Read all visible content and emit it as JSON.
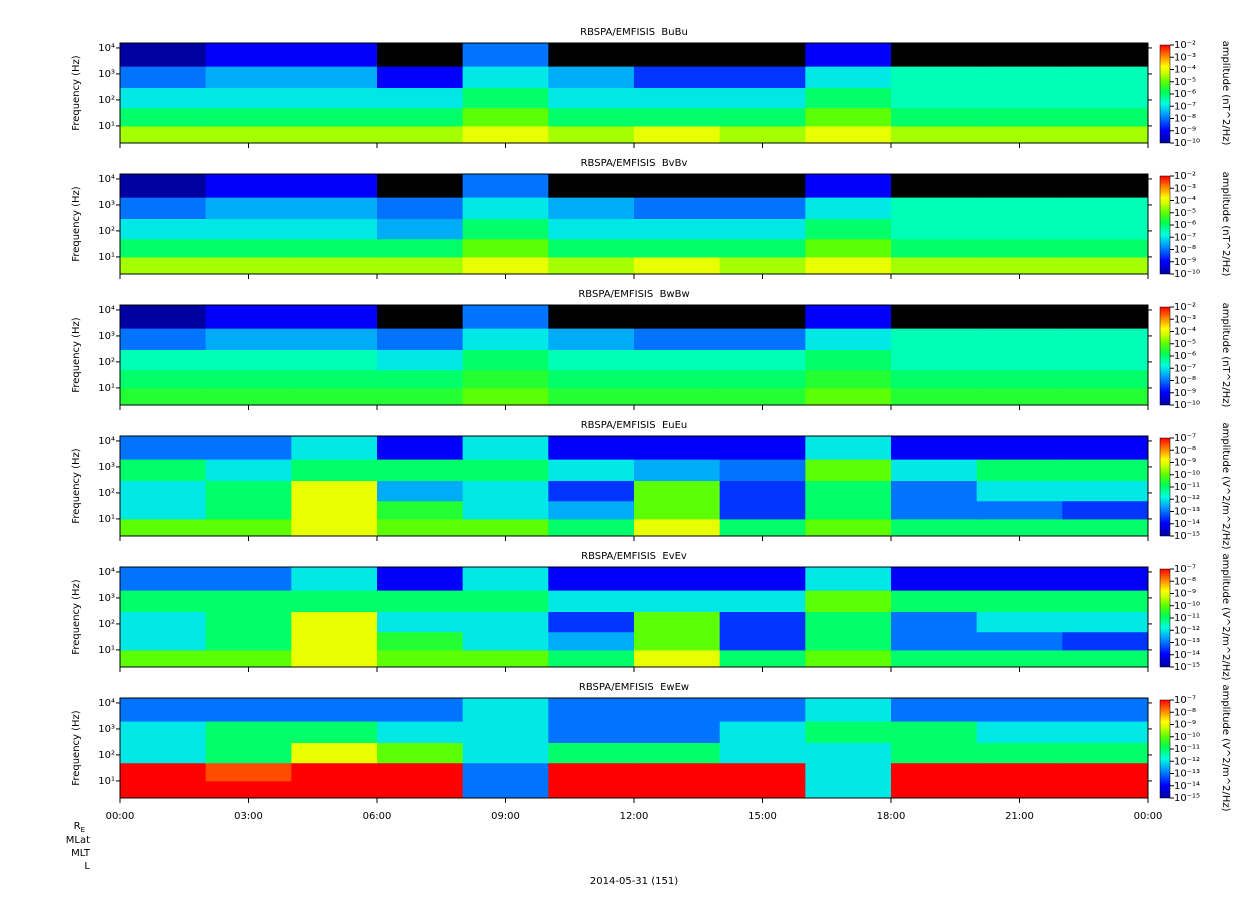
{
  "chart_data": [
    {
      "type": "heatmap",
      "title": "RBSPA/EMFISIS  BuBu",
      "ylabel": "Frequency (Hz)",
      "x_bins": [
        0,
        2,
        4,
        6,
        8,
        10,
        12,
        14,
        16,
        18,
        20,
        22,
        24
      ],
      "y_bins": [
        2.2,
        10,
        50,
        300,
        2000,
        15500
      ],
      "z": [
        [
          3e-05,
          3e-05,
          3e-05,
          3e-05,
          0.0001,
          3e-05,
          0.0001,
          3e-05,
          0.0001,
          3e-05,
          3e-05,
          3e-05
        ],
        [
          1e-06,
          1e-06,
          1e-06,
          1e-06,
          1e-05,
          1e-06,
          1e-06,
          1e-06,
          1e-05,
          1e-06,
          1e-06,
          1e-06
        ],
        [
          1e-07,
          1e-07,
          1e-07,
          1e-07,
          1e-06,
          1e-07,
          1e-07,
          1e-07,
          1e-06,
          3e-07,
          3e-07,
          3e-07
        ],
        [
          1e-08,
          3e-08,
          3e-08,
          1e-09,
          1e-07,
          3e-08,
          3e-09,
          3e-09,
          1e-07,
          3e-07,
          3e-07,
          3e-07
        ],
        [
          1e-10,
          1e-09,
          1e-09,
          1e-11,
          1e-08,
          1e-11,
          1e-11,
          1e-11,
          1e-09,
          1e-11,
          1e-11,
          1e-11
        ]
      ],
      "xlim": [
        0,
        24
      ],
      "xticks": [
        0,
        3,
        6,
        9,
        12,
        15,
        18,
        21,
        24
      ],
      "ylim": [
        2.2,
        15500
      ],
      "log_y": true,
      "yticks": [
        {
          "value": 10,
          "label": "10¹"
        },
        {
          "value": 100,
          "label": "10²"
        },
        {
          "value": 1000,
          "label": "10³"
        },
        {
          "value": 10000,
          "label": "10⁴"
        }
      ],
      "zlim": [
        1e-10,
        0.01
      ],
      "zticks": [
        {
          "value": 1e-10,
          "label": "10⁻¹⁰"
        },
        {
          "value": 1e-09,
          "label": "10⁻⁹"
        },
        {
          "value": 1e-08,
          "label": "10⁻⁸"
        },
        {
          "value": 1e-07,
          "label": "10⁻⁷"
        },
        {
          "value": 1e-06,
          "label": "10⁻⁶"
        },
        {
          "value": 1e-05,
          "label": "10⁻⁵"
        },
        {
          "value": 0.0001,
          "label": "10⁻⁴"
        },
        {
          "value": 0.001,
          "label": "10⁻³"
        },
        {
          "value": 0.01,
          "label": "10⁻²"
        }
      ],
      "zlabel": "amplitude (nT^2/Hz)"
    },
    {
      "type": "heatmap",
      "title": "RBSPA/EMFISIS  BvBv",
      "ylabel": "Frequency (Hz)",
      "x_bins": [
        0,
        2,
        4,
        6,
        8,
        10,
        12,
        14,
        16,
        18,
        20,
        22,
        24
      ],
      "y_bins": [
        2.2,
        10,
        50,
        300,
        2000,
        15500
      ],
      "z": [
        [
          3e-05,
          3e-05,
          3e-05,
          3e-05,
          0.0001,
          3e-05,
          0.0001,
          3e-05,
          0.0001,
          3e-05,
          3e-05,
          3e-05
        ],
        [
          1e-06,
          1e-06,
          1e-06,
          1e-06,
          1e-05,
          1e-06,
          1e-06,
          1e-06,
          1e-05,
          1e-06,
          1e-06,
          1e-06
        ],
        [
          1e-07,
          1e-07,
          1e-07,
          3e-08,
          1e-06,
          1e-07,
          1e-07,
          1e-07,
          1e-06,
          3e-07,
          3e-07,
          3e-07
        ],
        [
          1e-08,
          3e-08,
          3e-08,
          1e-08,
          1e-07,
          3e-08,
          1e-08,
          1e-08,
          1e-07,
          3e-07,
          3e-07,
          3e-07
        ],
        [
          1e-10,
          1e-09,
          1e-09,
          1e-11,
          1e-08,
          1e-11,
          1e-11,
          1e-11,
          1e-09,
          1e-11,
          1e-11,
          1e-11
        ]
      ],
      "xlim": [
        0,
        24
      ],
      "xticks": [
        0,
        3,
        6,
        9,
        12,
        15,
        18,
        21,
        24
      ],
      "ylim": [
        2.2,
        15500
      ],
      "log_y": true,
      "yticks": [
        {
          "value": 10,
          "label": "10¹"
        },
        {
          "value": 100,
          "label": "10²"
        },
        {
          "value": 1000,
          "label": "10³"
        },
        {
          "value": 10000,
          "label": "10⁴"
        }
      ],
      "zlim": [
        1e-10,
        0.01
      ],
      "zticks": [
        {
          "value": 1e-10,
          "label": "10⁻¹⁰"
        },
        {
          "value": 1e-09,
          "label": "10⁻⁹"
        },
        {
          "value": 1e-08,
          "label": "10⁻⁸"
        },
        {
          "value": 1e-07,
          "label": "10⁻⁷"
        },
        {
          "value": 1e-06,
          "label": "10⁻⁶"
        },
        {
          "value": 1e-05,
          "label": "10⁻⁵"
        },
        {
          "value": 0.0001,
          "label": "10⁻⁴"
        },
        {
          "value": 0.001,
          "label": "10⁻³"
        },
        {
          "value": 0.01,
          "label": "10⁻²"
        }
      ],
      "zlabel": "amplitude (nT^2/Hz)"
    },
    {
      "type": "heatmap",
      "title": "RBSPA/EMFISIS  BwBw",
      "ylabel": "Frequency (Hz)",
      "x_bins": [
        0,
        2,
        4,
        6,
        8,
        10,
        12,
        14,
        16,
        18,
        20,
        22,
        24
      ],
      "y_bins": [
        2.2,
        10,
        50,
        300,
        2000,
        15500
      ],
      "z": [
        [
          3e-06,
          3e-06,
          3e-06,
          3e-06,
          1e-05,
          3e-06,
          3e-06,
          3e-06,
          1e-05,
          3e-06,
          3e-06,
          3e-06
        ],
        [
          1e-06,
          1e-06,
          1e-06,
          1e-06,
          3e-06,
          1e-06,
          1e-06,
          1e-06,
          3e-06,
          1e-06,
          1e-06,
          1e-06
        ],
        [
          3e-07,
          3e-07,
          3e-07,
          1e-07,
          1e-06,
          3e-07,
          3e-07,
          3e-07,
          1e-06,
          3e-07,
          3e-07,
          3e-07
        ],
        [
          1e-08,
          3e-08,
          3e-08,
          1e-08,
          1e-07,
          3e-08,
          1e-08,
          1e-08,
          1e-07,
          3e-07,
          3e-07,
          3e-07
        ],
        [
          1e-10,
          1e-09,
          1e-09,
          1e-11,
          1e-08,
          1e-11,
          1e-11,
          1e-11,
          1e-09,
          1e-11,
          1e-11,
          1e-11
        ]
      ],
      "xlim": [
        0,
        24
      ],
      "xticks": [
        0,
        3,
        6,
        9,
        12,
        15,
        18,
        21,
        24
      ],
      "ylim": [
        2.2,
        15500
      ],
      "log_y": true,
      "yticks": [
        {
          "value": 10,
          "label": "10¹"
        },
        {
          "value": 100,
          "label": "10²"
        },
        {
          "value": 1000,
          "label": "10³"
        },
        {
          "value": 10000,
          "label": "10⁴"
        }
      ],
      "zlim": [
        1e-10,
        0.01
      ],
      "zticks": [
        {
          "value": 1e-10,
          "label": "10⁻¹⁰"
        },
        {
          "value": 1e-09,
          "label": "10⁻⁹"
        },
        {
          "value": 1e-08,
          "label": "10⁻⁸"
        },
        {
          "value": 1e-07,
          "label": "10⁻⁷"
        },
        {
          "value": 1e-06,
          "label": "10⁻⁶"
        },
        {
          "value": 1e-05,
          "label": "10⁻⁵"
        },
        {
          "value": 0.0001,
          "label": "10⁻⁴"
        },
        {
          "value": 0.001,
          "label": "10⁻³"
        },
        {
          "value": 0.01,
          "label": "10⁻²"
        }
      ],
      "zlabel": "amplitude (nT^2/Hz)"
    },
    {
      "type": "heatmap",
      "title": "RBSPA/EMFISIS  EuEu",
      "ylabel": "Frequency (Hz)",
      "x_bins": [
        0,
        2,
        4,
        6,
        8,
        10,
        12,
        14,
        16,
        18,
        20,
        22,
        24
      ],
      "y_bins": [
        2.2,
        10,
        50,
        300,
        2000,
        15500
      ],
      "z": [
        [
          1e-10,
          1e-10,
          1e-09,
          1e-10,
          1e-10,
          1e-11,
          1e-09,
          1e-11,
          1e-10,
          1e-11,
          1e-11,
          1e-11
        ],
        [
          1e-12,
          1e-11,
          1e-09,
          3e-11,
          1e-12,
          3e-13,
          1e-10,
          3e-14,
          1e-11,
          1e-13,
          1e-13,
          3e-14
        ],
        [
          1e-12,
          1e-11,
          1e-09,
          3e-13,
          1e-12,
          3e-14,
          1e-10,
          3e-14,
          1e-11,
          1e-13,
          1e-12,
          1e-12
        ],
        [
          1e-11,
          1e-12,
          1e-11,
          1e-11,
          1e-11,
          1e-12,
          3e-13,
          1e-13,
          1e-10,
          1e-12,
          1e-11,
          1e-11
        ],
        [
          1e-13,
          1e-13,
          1e-12,
          1e-14,
          1e-12,
          1e-14,
          1e-14,
          1e-14,
          1e-12,
          1e-14,
          1e-14,
          1e-14
        ]
      ],
      "xlim": [
        0,
        24
      ],
      "xticks": [
        0,
        3,
        6,
        9,
        12,
        15,
        18,
        21,
        24
      ],
      "ylim": [
        2.2,
        15500
      ],
      "log_y": true,
      "yticks": [
        {
          "value": 10,
          "label": "10¹"
        },
        {
          "value": 100,
          "label": "10²"
        },
        {
          "value": 1000,
          "label": "10³"
        },
        {
          "value": 10000,
          "label": "10⁴"
        }
      ],
      "zlim": [
        1e-15,
        1e-07
      ],
      "zticks": [
        {
          "value": 1e-15,
          "label": "10⁻¹⁵"
        },
        {
          "value": 1e-14,
          "label": "10⁻¹⁴"
        },
        {
          "value": 1e-13,
          "label": "10⁻¹³"
        },
        {
          "value": 1e-12,
          "label": "10⁻¹²"
        },
        {
          "value": 1e-11,
          "label": "10⁻¹¹"
        },
        {
          "value": 1e-10,
          "label": "10⁻¹⁰"
        },
        {
          "value": 1e-09,
          "label": "10⁻⁹"
        },
        {
          "value": 1e-08,
          "label": "10⁻⁸"
        },
        {
          "value": 1e-07,
          "label": "10⁻⁷"
        }
      ],
      "zlabel": "amplitude (V^2/m^2/Hz)"
    },
    {
      "type": "heatmap",
      "title": "RBSPA/EMFISIS  EvEv",
      "ylabel": "Frequency (Hz)",
      "x_bins": [
        0,
        2,
        4,
        6,
        8,
        10,
        12,
        14,
        16,
        18,
        20,
        22,
        24
      ],
      "y_bins": [
        2.2,
        10,
        50,
        300,
        2000,
        15500
      ],
      "z": [
        [
          1e-10,
          1e-10,
          1e-09,
          1e-10,
          1e-10,
          1e-11,
          1e-09,
          1e-11,
          1e-10,
          1e-11,
          1e-11,
          1e-11
        ],
        [
          1e-12,
          1e-11,
          1e-09,
          3e-11,
          1e-12,
          3e-13,
          1e-10,
          3e-14,
          1e-11,
          1e-13,
          1e-13,
          3e-14
        ],
        [
          1e-12,
          1e-11,
          1e-09,
          1e-12,
          1e-12,
          3e-14,
          1e-10,
          3e-14,
          1e-11,
          1e-13,
          1e-12,
          1e-12
        ],
        [
          1e-11,
          1e-11,
          1e-11,
          1e-11,
          1e-11,
          1e-12,
          1e-12,
          1e-12,
          1e-10,
          1e-11,
          1e-11,
          1e-11
        ],
        [
          1e-13,
          1e-13,
          1e-12,
          1e-14,
          1e-12,
          1e-14,
          1e-14,
          1e-14,
          1e-12,
          1e-14,
          1e-14,
          1e-14
        ]
      ],
      "xlim": [
        0,
        24
      ],
      "xticks": [
        0,
        3,
        6,
        9,
        12,
        15,
        18,
        21,
        24
      ],
      "ylim": [
        2.2,
        15500
      ],
      "log_y": true,
      "yticks": [
        {
          "value": 10,
          "label": "10¹"
        },
        {
          "value": 100,
          "label": "10²"
        },
        {
          "value": 1000,
          "label": "10³"
        },
        {
          "value": 10000,
          "label": "10⁴"
        }
      ],
      "zlim": [
        1e-15,
        1e-07
      ],
      "zticks": [
        {
          "value": 1e-15,
          "label": "10⁻¹⁵"
        },
        {
          "value": 1e-14,
          "label": "10⁻¹⁴"
        },
        {
          "value": 1e-13,
          "label": "10⁻¹³"
        },
        {
          "value": 1e-12,
          "label": "10⁻¹²"
        },
        {
          "value": 1e-11,
          "label": "10⁻¹¹"
        },
        {
          "value": 1e-10,
          "label": "10⁻¹⁰"
        },
        {
          "value": 1e-09,
          "label": "10⁻⁹"
        },
        {
          "value": 1e-08,
          "label": "10⁻⁸"
        },
        {
          "value": 1e-07,
          "label": "10⁻⁷"
        }
      ],
      "zlabel": "amplitude (V^2/m^2/Hz)"
    },
    {
      "type": "heatmap",
      "title": "RBSPA/EMFISIS  EwEw",
      "ylabel": "Frequency (Hz)",
      "x_bins": [
        0,
        2,
        4,
        6,
        8,
        10,
        12,
        14,
        16,
        18,
        20,
        22,
        24
      ],
      "y_bins": [
        2.2,
        10,
        50,
        300,
        2000,
        15500
      ],
      "z": [
        [
          1e-07,
          1e-07,
          1e-07,
          1e-07,
          1e-13,
          1e-07,
          1e-07,
          1e-07,
          1e-12,
          1e-07,
          1e-07,
          1e-07
        ],
        [
          1e-07,
          3e-08,
          1e-07,
          1e-07,
          1e-13,
          1e-07,
          1e-07,
          1e-07,
          1e-12,
          1e-07,
          1e-07,
          1e-07
        ],
        [
          1e-12,
          1e-11,
          1e-09,
          1e-10,
          1e-12,
          1e-11,
          1e-11,
          1e-12,
          1e-12,
          1e-11,
          1e-11,
          1e-11
        ],
        [
          1e-12,
          1e-11,
          1e-11,
          1e-12,
          1e-12,
          1e-13,
          1e-13,
          1e-12,
          1e-11,
          1e-11,
          1e-12,
          1e-12
        ],
        [
          1e-13,
          1e-13,
          1e-13,
          1e-13,
          1e-12,
          1e-13,
          1e-13,
          1e-13,
          1e-12,
          1e-13,
          1e-13,
          1e-13
        ]
      ],
      "xlim": [
        0,
        24
      ],
      "xticks": [
        {
          "value": 0,
          "label": "00:00"
        },
        {
          "value": 3,
          "label": "03:00"
        },
        {
          "value": 6,
          "label": "06:00"
        },
        {
          "value": 9,
          "label": "09:00"
        },
        {
          "value": 12,
          "label": "12:00"
        },
        {
          "value": 15,
          "label": "15:00"
        },
        {
          "value": 18,
          "label": "18:00"
        },
        {
          "value": 21,
          "label": "21:00"
        },
        {
          "value": 24,
          "label": "00:00"
        }
      ],
      "ylim": [
        2.2,
        15500
      ],
      "log_y": true,
      "yticks": [
        {
          "value": 10,
          "label": "10¹"
        },
        {
          "value": 100,
          "label": "10²"
        },
        {
          "value": 1000,
          "label": "10³"
        },
        {
          "value": 10000,
          "label": "10⁴"
        }
      ],
      "zlim": [
        1e-15,
        1e-07
      ],
      "zticks": [
        {
          "value": 1e-15,
          "label": "10⁻¹⁵"
        },
        {
          "value": 1e-14,
          "label": "10⁻¹⁴"
        },
        {
          "value": 1e-13,
          "label": "10⁻¹³"
        },
        {
          "value": 1e-12,
          "label": "10⁻¹²"
        },
        {
          "value": 1e-11,
          "label": "10⁻¹¹"
        },
        {
          "value": 1e-10,
          "label": "10⁻¹⁰"
        },
        {
          "value": 1e-09,
          "label": "10⁻⁹"
        },
        {
          "value": 1e-08,
          "label": "10⁻⁸"
        },
        {
          "value": 1e-07,
          "label": "10⁻⁷"
        }
      ],
      "zlabel": "amplitude (V^2/m^2/Hz)"
    }
  ],
  "footer": {
    "ephemeris": [
      {
        "base": "R",
        "sub": "E"
      },
      "MLat",
      "MLT",
      "L"
    ],
    "date": "2014-05-31 (151)"
  }
}
